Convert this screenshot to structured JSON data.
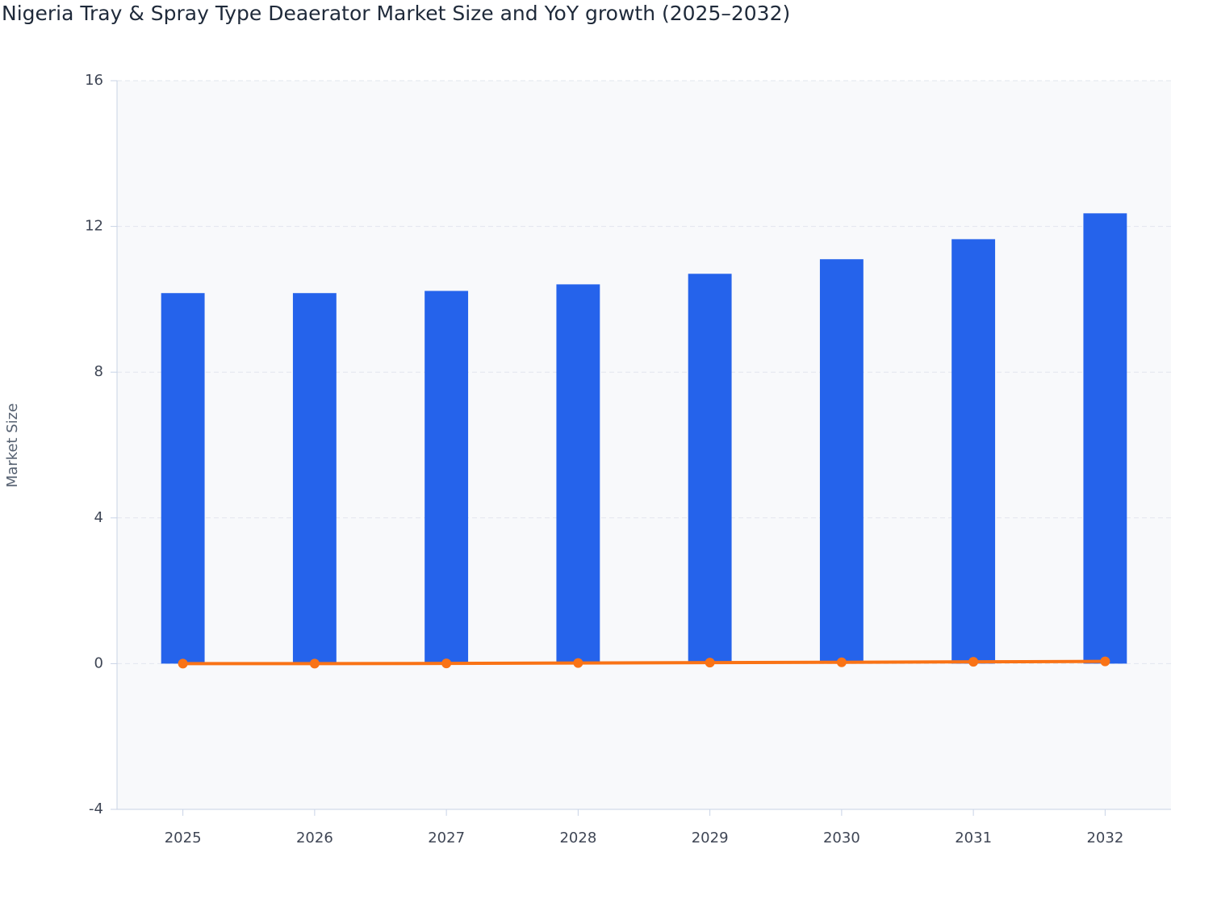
{
  "chart_data": {
    "type": "bar",
    "title": "Nigeria Tray & Spray Type Deaerator Market Size and YoY growth (2025–2032)",
    "y_label": "Market Size",
    "categories": [
      "2025",
      "2026",
      "2027",
      "2028",
      "2029",
      "2030",
      "2031",
      "2032"
    ],
    "series": [
      {
        "type": "bar",
        "color": "#2563eb",
        "values": [
          10.17,
          10.17,
          10.23,
          10.41,
          10.7,
          11.1,
          11.65,
          12.36
        ]
      },
      {
        "type": "line",
        "color": "#f97316",
        "values": [
          0,
          0.0,
          0.006,
          0.017,
          0.028,
          0.037,
          0.05,
          0.061
        ]
      }
    ],
    "ylim": [
      -4,
      16
    ],
    "yticks": [
      -4,
      0,
      4,
      8,
      12,
      16
    ],
    "grid": true
  }
}
